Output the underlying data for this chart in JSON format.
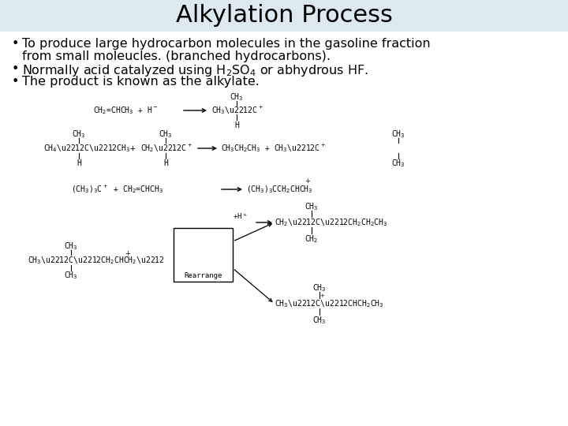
{
  "title": "Alkylation Process",
  "title_bg": "#dce9f0",
  "title_fontsize": 22,
  "bg_color": "#ffffff",
  "bullet1_line1": "To produce large hydrocarbon molecules in the gasoline fraction",
  "bullet1_line2": "from small moleucles. (branched hydrocarbons).",
  "bullet2": "Normally acid catalyzed using H₂SO₄ or abhydrous HF.",
  "bullet3": "The product is known as the alkylate.",
  "text_fontsize": 11.5,
  "chem_fontsize": 7.0
}
